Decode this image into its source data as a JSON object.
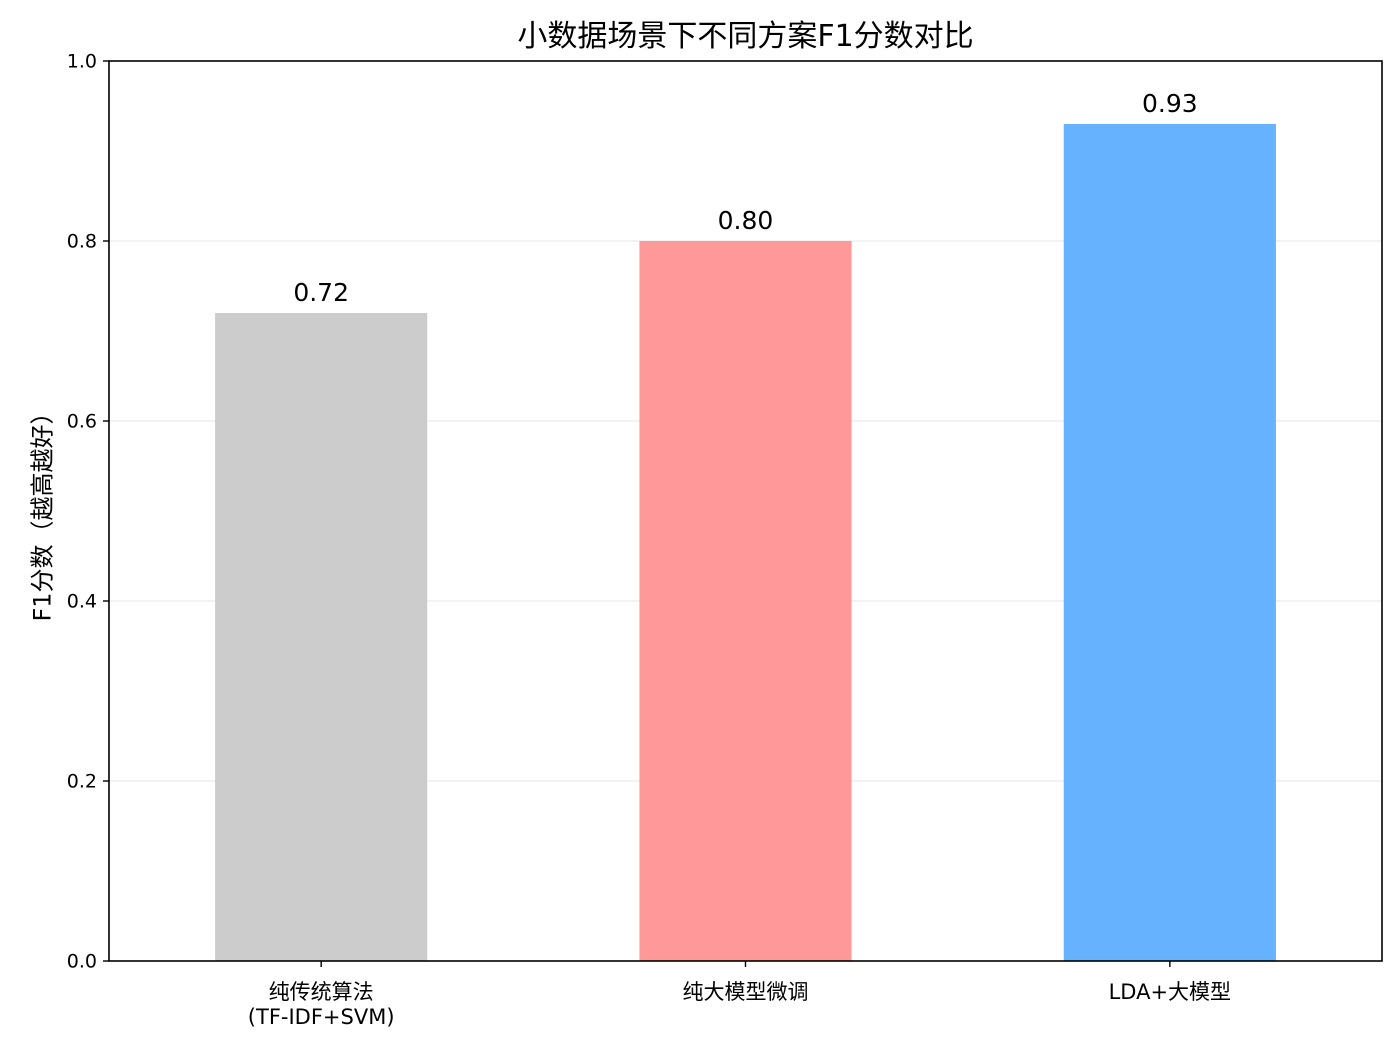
{
  "chart_data": {
    "type": "bar",
    "title": "小数据场景下不同方案F1分数对比",
    "xlabel": "",
    "ylabel": "F1分数（越高越好）",
    "categories": [
      [
        "纯传统算法",
        "(TF-IDF+SVM)"
      ],
      [
        "纯大模型微调"
      ],
      [
        "LDA+大模型"
      ]
    ],
    "values": [
      0.72,
      0.8,
      0.93
    ],
    "data_labels": [
      "0.72",
      "0.80",
      "0.93"
    ],
    "bar_colors": [
      "#cccccc",
      "#ff9999",
      "#66b2ff"
    ],
    "ylim": [
      0.0,
      1.0
    ],
    "yticks": [
      0.0,
      0.2,
      0.4,
      0.6,
      0.8,
      1.0
    ],
    "ytick_labels": [
      "0.0",
      "0.2",
      "0.4",
      "0.6",
      "0.8",
      "1.0"
    ],
    "grid": "y",
    "legend": "none"
  }
}
